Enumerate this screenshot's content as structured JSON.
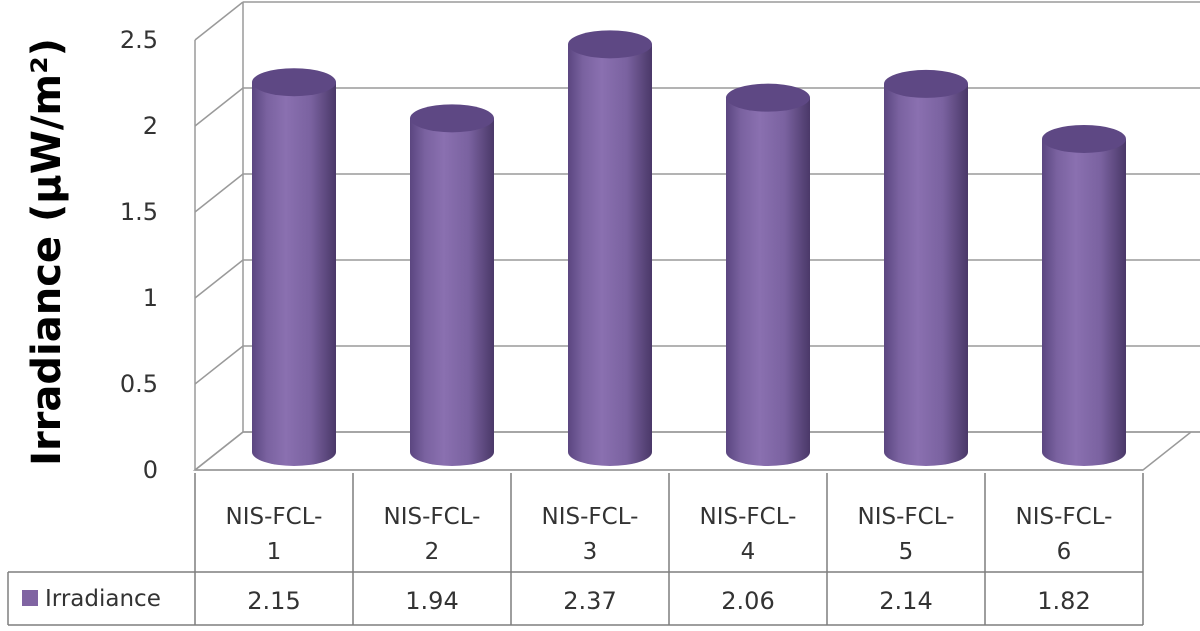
{
  "chart_data": {
    "type": "bar",
    "style": "3d-cylinder",
    "categories": [
      [
        "NIS-FCL-",
        "1"
      ],
      [
        "NIS-FCL-",
        "2"
      ],
      [
        "NIS-FCL-",
        "3"
      ],
      [
        "NIS-FCL-",
        "4"
      ],
      [
        "NIS-FCL-",
        "5"
      ],
      [
        "NIS-FCL-",
        "6"
      ]
    ],
    "series": [
      {
        "name": "Irradiance",
        "values": [
          2.15,
          1.94,
          2.37,
          2.06,
          2.14,
          1.82
        ],
        "value_labels": [
          "2.15",
          "1.94",
          "2.37",
          "2.06",
          "2.14",
          "1.82"
        ]
      }
    ],
    "ylabel": "Irradiance (µW/m²)",
    "ylim": [
      0,
      2.5
    ],
    "yticks": [
      "0",
      "0.5",
      "1",
      "1.5",
      "2",
      "2.5"
    ],
    "grid": true,
    "legend": "data-table-left",
    "colors": {
      "bar": "#8064a2",
      "bar_dark": "#4e3a6d",
      "bar_top": "#5e4884",
      "grid": "#9a9a9a",
      "wall": "#ffffff"
    }
  }
}
